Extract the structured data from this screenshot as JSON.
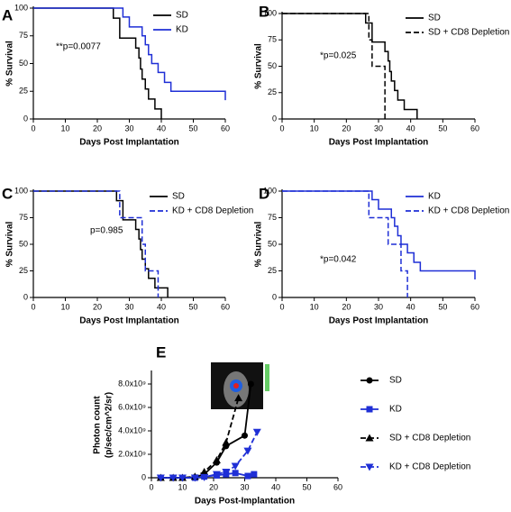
{
  "chart_data": [
    {
      "type": "line",
      "step": true,
      "panel": "A",
      "annotation": "**p=0.0077",
      "xlabel": "Days Post Implantation",
      "ylabel": "% Survival",
      "xlim": [
        0,
        60
      ],
      "xticks": [
        0,
        10,
        20,
        30,
        40,
        50,
        60
      ],
      "ylim": [
        0,
        100
      ],
      "yticks": [
        0,
        25,
        50,
        75,
        100
      ],
      "legend": "upper right",
      "series": [
        {
          "name": "SD",
          "color": "#000000",
          "linestyle": "solid",
          "x": [
            0,
            25,
            27,
            32,
            33,
            33.5,
            34,
            35,
            36,
            38,
            40
          ],
          "values": [
            100,
            91,
            73,
            64,
            55,
            45,
            36,
            27,
            18,
            9,
            0
          ]
        },
        {
          "name": "KD",
          "color": "#1f2fd6",
          "linestyle": "solid",
          "x": [
            0,
            28,
            30,
            34,
            35,
            36,
            37,
            39,
            41,
            43,
            60
          ],
          "values": [
            100,
            92,
            83,
            75,
            67,
            58,
            50,
            42,
            33,
            25,
            17
          ]
        }
      ]
    },
    {
      "type": "line",
      "step": true,
      "panel": "B",
      "annotation": "*p=0.025",
      "xlabel": "Days Post Implantation",
      "ylabel": "% Survival",
      "xlim": [
        0,
        60
      ],
      "xticks": [
        0,
        10,
        20,
        30,
        40,
        50,
        60
      ],
      "ylim": [
        0,
        100
      ],
      "yticks": [
        0,
        25,
        50,
        75,
        100
      ],
      "legend": "upper right",
      "series": [
        {
          "name": "SD",
          "color": "#000000",
          "linestyle": "solid",
          "x": [
            0,
            26,
            28,
            32,
            33,
            33.5,
            34,
            35,
            36,
            38,
            42
          ],
          "values": [
            100,
            91,
            73,
            64,
            55,
            45,
            36,
            27,
            18,
            9,
            0
          ]
        },
        {
          "name": "SD + CD8 Depletion",
          "color": "#000000",
          "linestyle": "dashed",
          "x": [
            0,
            27,
            28,
            29,
            32
          ],
          "values": [
            100,
            75,
            50,
            50,
            0
          ]
        }
      ]
    },
    {
      "type": "line",
      "step": true,
      "panel": "C",
      "annotation": "p=0.985",
      "xlabel": "Days Post Implantation",
      "ylabel": "% Survival",
      "xlim": [
        0,
        60
      ],
      "xticks": [
        0,
        10,
        20,
        30,
        40,
        50,
        60
      ],
      "ylim": [
        0,
        100
      ],
      "yticks": [
        0,
        25,
        50,
        75,
        100
      ],
      "legend": "upper right",
      "series": [
        {
          "name": "SD",
          "color": "#000000",
          "linestyle": "solid",
          "x": [
            0,
            26,
            28,
            32,
            33,
            33.5,
            34,
            35,
            36,
            38,
            42
          ],
          "values": [
            100,
            91,
            73,
            64,
            55,
            45,
            36,
            27,
            18,
            9,
            0
          ]
        },
        {
          "name": "KD + CD8 Depletion",
          "color": "#1f2fd6",
          "linestyle": "dashed",
          "x": [
            0,
            27,
            28,
            34,
            35,
            39
          ],
          "values": [
            100,
            75,
            75,
            50,
            25,
            0
          ]
        }
      ]
    },
    {
      "type": "line",
      "step": true,
      "panel": "D",
      "annotation": "*p=0.042",
      "xlabel": "Days Post Implantation",
      "ylabel": "% Survival",
      "xlim": [
        0,
        60
      ],
      "xticks": [
        0,
        10,
        20,
        30,
        40,
        50,
        60
      ],
      "ylim": [
        0,
        100
      ],
      "yticks": [
        0,
        25,
        50,
        75,
        100
      ],
      "legend": "upper right",
      "series": [
        {
          "name": "KD",
          "color": "#1f2fd6",
          "linestyle": "solid",
          "x": [
            0,
            28,
            30,
            34,
            35,
            36,
            37,
            39,
            41,
            43,
            60
          ],
          "values": [
            100,
            92,
            83,
            75,
            67,
            58,
            50,
            42,
            33,
            25,
            17
          ]
        },
        {
          "name": "KD + CD8 Depletion",
          "color": "#1f2fd6",
          "linestyle": "dashed",
          "x": [
            0,
            27,
            28,
            33,
            37,
            39
          ],
          "values": [
            100,
            75,
            75,
            50,
            25,
            0
          ]
        }
      ]
    },
    {
      "type": "line",
      "step": false,
      "panel": "E",
      "xlabel": "Days Post-Implantation",
      "ylabel": [
        "Photon count",
        "(p/sec/cm^2/sr)"
      ],
      "xlim": [
        0,
        60
      ],
      "xticks": [
        0,
        10,
        20,
        30,
        40,
        50,
        60
      ],
      "ylim": [
        0,
        9000000000
      ],
      "yticks": [
        0,
        {
          "value": 2000000000,
          "label": "2.0x10⁹"
        },
        {
          "value": 4000000000,
          "label": "4.0x10⁹"
        },
        {
          "value": 6000000000,
          "label": "6.0x10⁹"
        },
        {
          "value": 8000000000,
          "label": "8.0x10⁹"
        }
      ],
      "legend": "outside right",
      "series": [
        {
          "name": "SD",
          "color": "#000000",
          "linestyle": "solid",
          "marker": "circle",
          "x": [
            3,
            7,
            10,
            14,
            17,
            21,
            24,
            30,
            32
          ],
          "values": [
            0,
            0,
            0,
            50000000,
            300000000,
            1300000000,
            2700000000,
            3600000000,
            8000000000
          ]
        },
        {
          "name": "KD",
          "color": "#1f2fd6",
          "linestyle": "solid",
          "marker": "square",
          "x": [
            3,
            7,
            10,
            14,
            17,
            21,
            24,
            27,
            31,
            33
          ],
          "values": [
            0,
            0,
            0,
            0,
            100000000,
            200000000,
            300000000,
            400000000,
            150000000,
            300000000
          ]
        },
        {
          "name": "SD + CD8 Depletion",
          "color": "#000000",
          "linestyle": "dashed",
          "marker": "triangle",
          "x": [
            3,
            7,
            10,
            14,
            17,
            21,
            24,
            28
          ],
          "values": [
            0,
            0,
            0,
            100000000,
            500000000,
            1500000000,
            3000000000,
            6800000000
          ]
        },
        {
          "name": "KD + CD8 Depletion",
          "color": "#1f2fd6",
          "linestyle": "dashed",
          "marker": "triangle-down",
          "x": [
            3,
            7,
            10,
            14,
            17,
            21,
            24,
            27,
            31,
            34
          ],
          "values": [
            0,
            0,
            0,
            0,
            50000000,
            300000000,
            500000000,
            1000000000,
            2300000000,
            3900000000
          ]
        }
      ]
    }
  ]
}
